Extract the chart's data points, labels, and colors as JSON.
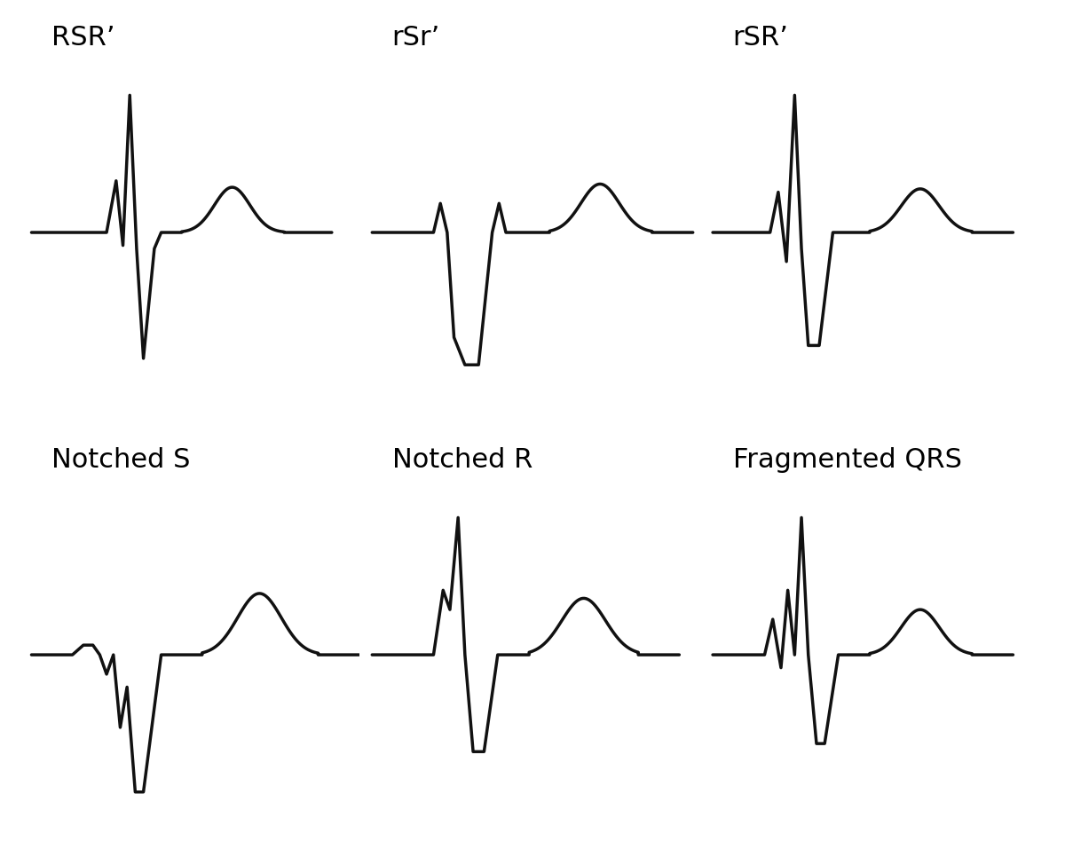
{
  "titles": [
    "RSR’",
    "rSr’",
    "rSR’",
    "Notched S",
    "Notched R",
    "Fragmented QRS"
  ],
  "title_fontsize": 22,
  "line_color": "#111111",
  "line_width": 2.5,
  "bg_color": "#ffffff"
}
